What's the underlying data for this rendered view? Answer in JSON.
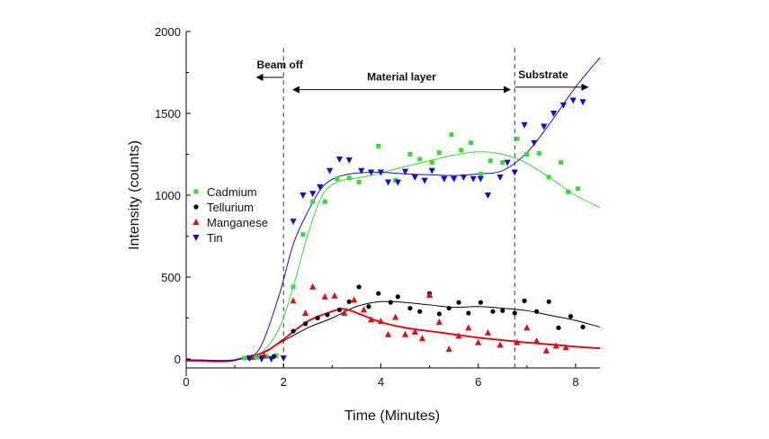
{
  "chart_data": {
    "type": "scatter",
    "title": "",
    "xlabel": "Time (Minutes)",
    "ylabel": "Intensity (counts)",
    "xlim": [
      0,
      8.5
    ],
    "ylim": [
      -50,
      2000
    ],
    "xticks": [
      "0",
      "2",
      "4",
      "6",
      "8"
    ],
    "yticks": [
      "0",
      "500",
      "1000",
      "1500",
      "2000"
    ],
    "grid": false,
    "legend_position": "left-middle",
    "region_dividers": [
      2.0,
      6.75
    ],
    "annotations": [
      {
        "text": "Beam off",
        "arrow_from": 2.0,
        "arrow_to": 1.45,
        "y": 1720
      },
      {
        "text": "Material layer",
        "arrow_from": 2.2,
        "arrow_to": 6.65,
        "y": 1645
      },
      {
        "text": "Substrate",
        "arrow_from": 6.75,
        "arrow_to": 8.25,
        "y": 1660
      }
    ],
    "series": [
      {
        "name": "Cadmium",
        "color": "#33dd33",
        "marker": "square",
        "points": [
          [
            1.2,
            5
          ],
          [
            1.45,
            10
          ],
          [
            1.65,
            15
          ],
          [
            1.85,
            20
          ],
          [
            2.2,
            440
          ],
          [
            2.4,
            760
          ],
          [
            2.6,
            960
          ],
          [
            2.85,
            960
          ],
          [
            3.1,
            1100
          ],
          [
            3.35,
            1105
          ],
          [
            3.55,
            1080
          ],
          [
            3.95,
            1300
          ],
          [
            4.3,
            1090
          ],
          [
            4.6,
            1250
          ],
          [
            4.8,
            1220
          ],
          [
            5.05,
            1200
          ],
          [
            5.2,
            1260
          ],
          [
            5.45,
            1370
          ],
          [
            5.65,
            1275
          ],
          [
            5.85,
            1320
          ],
          [
            6.05,
            1130
          ],
          [
            6.25,
            1210
          ],
          [
            6.5,
            1200
          ],
          [
            6.8,
            1345
          ],
          [
            7.0,
            1250
          ],
          [
            7.25,
            1255
          ],
          [
            7.45,
            1110
          ],
          [
            7.7,
            1200
          ],
          [
            7.85,
            1020
          ],
          [
            8.05,
            1040
          ]
        ],
        "fit": [
          [
            0,
            -5
          ],
          [
            0.8,
            -8
          ],
          [
            1.1,
            0
          ],
          [
            1.5,
            25
          ],
          [
            1.9,
            180
          ],
          [
            2.2,
            440
          ],
          [
            2.5,
            760
          ],
          [
            2.8,
            1000
          ],
          [
            3.1,
            1080
          ],
          [
            3.4,
            1100
          ],
          [
            3.8,
            1120
          ],
          [
            4.3,
            1160
          ],
          [
            5.0,
            1210
          ],
          [
            5.5,
            1245
          ],
          [
            6.0,
            1265
          ],
          [
            6.5,
            1250
          ],
          [
            7.0,
            1195
          ],
          [
            7.5,
            1100
          ],
          [
            8.0,
            1000
          ],
          [
            8.5,
            925
          ]
        ]
      },
      {
        "name": "Tellurium",
        "color": "#000000",
        "marker": "circle",
        "points": [
          [
            1.3,
            5
          ],
          [
            1.55,
            10
          ],
          [
            1.8,
            15
          ],
          [
            2.2,
            170
          ],
          [
            2.45,
            215
          ],
          [
            2.7,
            250
          ],
          [
            2.9,
            270
          ],
          [
            3.15,
            300
          ],
          [
            3.35,
            350
          ],
          [
            3.55,
            440
          ],
          [
            3.75,
            320
          ],
          [
            3.95,
            400
          ],
          [
            4.2,
            345
          ],
          [
            4.35,
            380
          ],
          [
            4.6,
            310
          ],
          [
            4.8,
            290
          ],
          [
            5.0,
            400
          ],
          [
            5.2,
            275
          ],
          [
            5.4,
            310
          ],
          [
            5.6,
            345
          ],
          [
            5.8,
            280
          ],
          [
            6.05,
            345
          ],
          [
            6.3,
            290
          ],
          [
            6.5,
            295
          ],
          [
            6.75,
            280
          ],
          [
            6.95,
            355
          ],
          [
            7.2,
            290
          ],
          [
            7.45,
            350
          ],
          [
            7.65,
            190
          ],
          [
            7.9,
            260
          ],
          [
            8.15,
            195
          ]
        ],
        "fit": [
          [
            0,
            -5
          ],
          [
            0.8,
            -10
          ],
          [
            1.1,
            0
          ],
          [
            1.5,
            30
          ],
          [
            2.0,
            110
          ],
          [
            2.5,
            190
          ],
          [
            3.0,
            250
          ],
          [
            3.5,
            320
          ],
          [
            4.0,
            350
          ],
          [
            4.5,
            345
          ],
          [
            5.0,
            330
          ],
          [
            5.5,
            315
          ],
          [
            6.0,
            320
          ],
          [
            6.5,
            310
          ],
          [
            7.0,
            295
          ],
          [
            7.5,
            265
          ],
          [
            8.0,
            235
          ],
          [
            8.5,
            195
          ]
        ]
      },
      {
        "name": "Manganese",
        "color": "#dd1111",
        "marker": "triangle-up",
        "points": [
          [
            1.35,
            10
          ],
          [
            1.6,
            20
          ],
          [
            2.2,
            355
          ],
          [
            2.45,
            280
          ],
          [
            2.6,
            440
          ],
          [
            2.85,
            380
          ],
          [
            3.05,
            385
          ],
          [
            3.25,
            280
          ],
          [
            3.45,
            360
          ],
          [
            3.65,
            300
          ],
          [
            3.8,
            240
          ],
          [
            4.0,
            230
          ],
          [
            4.15,
            150
          ],
          [
            4.3,
            255
          ],
          [
            4.5,
            150
          ],
          [
            4.7,
            165
          ],
          [
            4.85,
            125
          ],
          [
            5.0,
            390
          ],
          [
            5.2,
            225
          ],
          [
            5.4,
            60
          ],
          [
            5.6,
            140
          ],
          [
            5.8,
            190
          ],
          [
            6.0,
            100
          ],
          [
            6.2,
            160
          ],
          [
            6.45,
            85
          ],
          [
            6.8,
            100
          ],
          [
            7.0,
            190
          ],
          [
            7.2,
            110
          ],
          [
            7.4,
            50
          ],
          [
            7.6,
            80
          ],
          [
            7.8,
            70
          ]
        ],
        "fit": [
          [
            0,
            -10
          ],
          [
            0.8,
            -15
          ],
          [
            1.1,
            0
          ],
          [
            1.6,
            40
          ],
          [
            2.0,
            120
          ],
          [
            2.5,
            230
          ],
          [
            3.0,
            290
          ],
          [
            3.25,
            305
          ],
          [
            3.6,
            270
          ],
          [
            4.0,
            225
          ],
          [
            4.5,
            190
          ],
          [
            5.0,
            170
          ],
          [
            5.5,
            150
          ],
          [
            6.0,
            130
          ],
          [
            6.5,
            115
          ],
          [
            7.0,
            100
          ],
          [
            7.5,
            88
          ],
          [
            8.0,
            75
          ],
          [
            8.5,
            65
          ]
        ]
      },
      {
        "name": "Tin",
        "color": "#1111cc",
        "marker": "triangle-down",
        "points": [
          [
            1.3,
            5
          ],
          [
            1.55,
            0
          ],
          [
            1.75,
            0
          ],
          [
            2.0,
            5
          ],
          [
            2.2,
            840
          ],
          [
            2.4,
            1000
          ],
          [
            2.6,
            1010
          ],
          [
            2.75,
            1050
          ],
          [
            2.95,
            1150
          ],
          [
            3.15,
            1220
          ],
          [
            3.35,
            1215
          ],
          [
            3.6,
            1150
          ],
          [
            3.8,
            1140
          ],
          [
            4.0,
            1140
          ],
          [
            4.15,
            1080
          ],
          [
            4.35,
            1080
          ],
          [
            4.5,
            1145
          ],
          [
            4.7,
            1110
          ],
          [
            4.9,
            1090
          ],
          [
            5.05,
            1150
          ],
          [
            5.3,
            1100
          ],
          [
            5.5,
            1100
          ],
          [
            5.7,
            1110
          ],
          [
            5.9,
            1100
          ],
          [
            6.05,
            1100
          ],
          [
            6.2,
            1000
          ],
          [
            6.45,
            1110
          ],
          [
            6.6,
            1200
          ],
          [
            6.75,
            1140
          ],
          [
            6.95,
            1430
          ],
          [
            7.15,
            1320
          ],
          [
            7.35,
            1420
          ],
          [
            7.55,
            1500
          ],
          [
            7.75,
            1550
          ],
          [
            7.95,
            1580
          ],
          [
            8.15,
            1570
          ]
        ],
        "fit": [
          [
            0,
            -5
          ],
          [
            0.8,
            -10
          ],
          [
            1.1,
            0
          ],
          [
            1.5,
            60
          ],
          [
            1.9,
            380
          ],
          [
            2.2,
            700
          ],
          [
            2.5,
            900
          ],
          [
            2.8,
            1050
          ],
          [
            3.1,
            1110
          ],
          [
            3.5,
            1135
          ],
          [
            4.0,
            1140
          ],
          [
            4.5,
            1130
          ],
          [
            5.0,
            1125
          ],
          [
            5.5,
            1120
          ],
          [
            6.0,
            1130
          ],
          [
            6.5,
            1150
          ],
          [
            7.0,
            1260
          ],
          [
            7.5,
            1450
          ],
          [
            8.0,
            1660
          ],
          [
            8.5,
            1840
          ]
        ]
      }
    ]
  }
}
